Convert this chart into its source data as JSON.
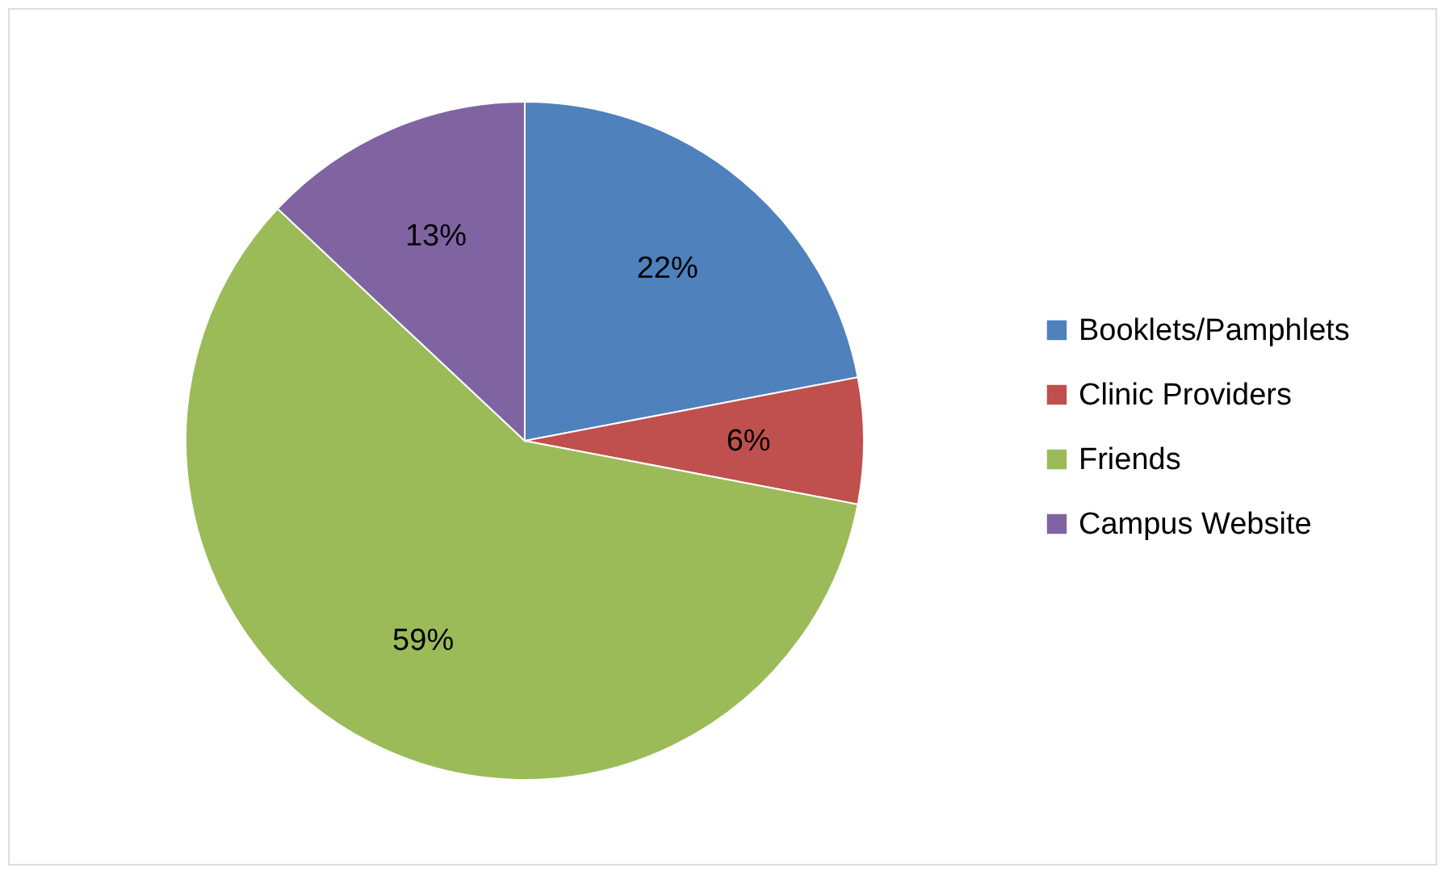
{
  "chart_data": {
    "type": "pie",
    "categories": [
      "Booklets/Pamphlets",
      "Clinic Providers",
      "Friends",
      "Campus Website"
    ],
    "values": [
      22,
      6,
      59,
      13
    ],
    "colors": [
      "#4f81bd",
      "#c0504d",
      "#9bbb59",
      "#8064a2"
    ],
    "value_labels": [
      "22%",
      "6%",
      "59%",
      "13%"
    ],
    "legend": "right"
  }
}
